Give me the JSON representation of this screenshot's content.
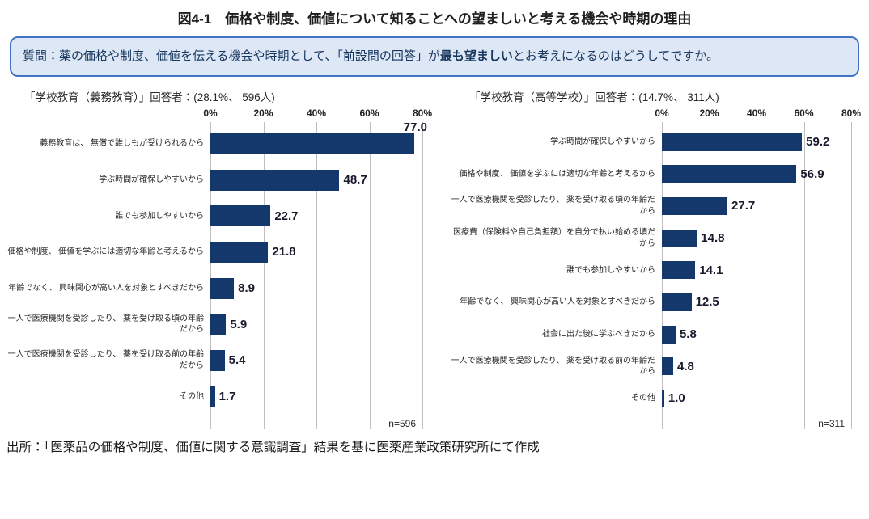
{
  "page": {
    "title": "図4-1　価格や制度、価値について知ることへの望ましいと考える機会や時期の理由",
    "source_note": "出所：「医薬品の価格や制度、価値に関する意識調査」結果を基に医薬産業政策研究所にて作成"
  },
  "question_box": {
    "prefix": "質問：薬の価格や制度、価値を伝える機会や時期として、「前設問の回答」が",
    "bold": "最も望ましい",
    "suffix": "とお考えになるのはどうしてですか。"
  },
  "colors": {
    "bar": "#14386B",
    "question_box_bg": "#DEE7F5",
    "question_box_border": "#4472C4",
    "question_text": "#17375E",
    "gridline": "#BFBFBF",
    "value_label": "#1A1A2E"
  },
  "chart_data": [
    {
      "type": "bar",
      "orientation": "horizontal",
      "title": "「学校教育（義務教育）」回答者：(28.1%、 596人)",
      "n_label": "n=596",
      "xlim": [
        0,
        80
      ],
      "tick_labels": [
        "0%",
        "20%",
        "40%",
        "60%",
        "80%"
      ],
      "grid": true,
      "legend": "none",
      "categories": [
        "義務教育は、 無償で誰しもが受けられるから",
        "学ぶ時間が確保しやすいから",
        "誰でも参加しやすいから",
        "価格や制度、 価値を学ぶには適切な年齢と考えるから",
        "年齢でなく、 興味関心が高い人を対象とすべきだから",
        "一人で医療機関を受診したり、 薬を受け取る頃の年齢だから",
        "一人で医療機関を受診したり、 薬を受け取る前の年齢だから",
        "その他"
      ],
      "values": [
        77.0,
        48.7,
        22.7,
        21.8,
        8.9,
        5.9,
        5.4,
        1.7
      ]
    },
    {
      "type": "bar",
      "orientation": "horizontal",
      "title": "「学校教育（高等学校）」回答者：(14.7%、 311人)",
      "n_label": "n=311",
      "xlim": [
        0,
        80
      ],
      "tick_labels": [
        "0%",
        "20%",
        "40%",
        "60%",
        "80%"
      ],
      "grid": true,
      "legend": "none",
      "categories": [
        "学ぶ時間が確保しやすいから",
        "価格や制度、 価値を学ぶには適切な年齢と考えるから",
        "一人で医療機関を受診したり、 薬を受け取る頃の年齢だから",
        "医療費（保険料や自己負担額）を自分で払い始める頃だから",
        "誰でも参加しやすいから",
        "年齢でなく、 興味関心が高い人を対象とすべきだから",
        "社会に出た後に学ぶべきだから",
        "一人で医療機関を受診したり、 薬を受け取る前の年齢だから",
        "その他"
      ],
      "values": [
        59.2,
        56.9,
        27.7,
        14.8,
        14.1,
        12.5,
        5.8,
        4.8,
        1.0
      ]
    }
  ]
}
